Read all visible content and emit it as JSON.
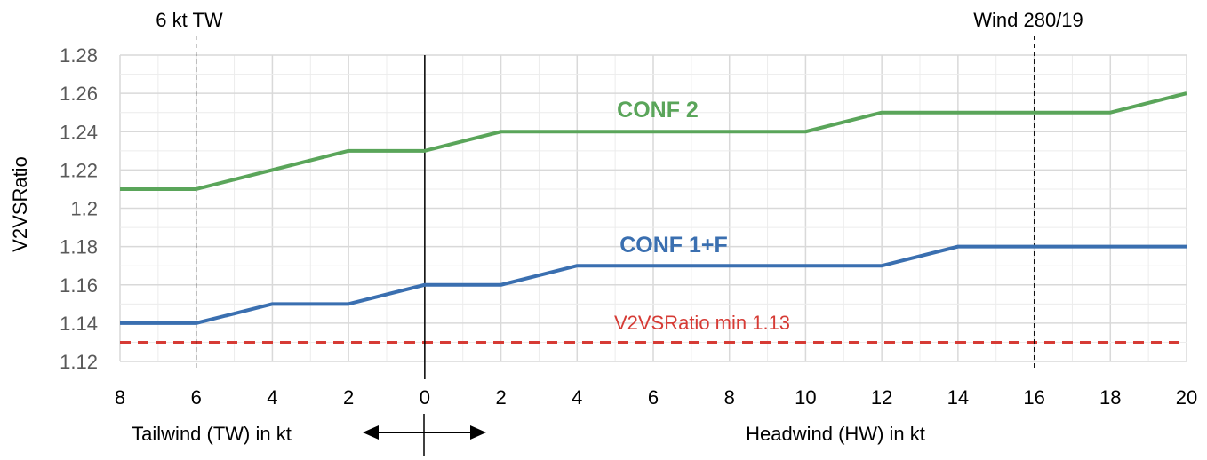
{
  "chart_data": {
    "type": "line",
    "title": "",
    "ylabel": "V2VSRatio",
    "xlabel_left": "Tailwind (TW) in kt",
    "xlabel_right": "Headwind (HW) in kt",
    "ylim": [
      1.12,
      1.28
    ],
    "yticks": [
      "1.12",
      "1.14",
      "1.16",
      "1.18",
      "1.2",
      "1.22",
      "1.24",
      "1.26",
      "1.28"
    ],
    "ytick_values": [
      1.12,
      1.14,
      1.16,
      1.18,
      1.2,
      1.22,
      1.24,
      1.26,
      1.28
    ],
    "x_wind_kt": [
      -8,
      -6,
      -4,
      -2,
      0,
      2,
      4,
      6,
      8,
      10,
      12,
      14,
      16,
      18,
      20
    ],
    "xticks": [
      "8",
      "6",
      "4",
      "2",
      "0",
      "2",
      "4",
      "6",
      "8",
      "10",
      "12",
      "14",
      "16",
      "18",
      "20"
    ],
    "xlim": [
      -8,
      20
    ],
    "grid": true,
    "series": [
      {
        "name": "CONF 2",
        "color": "#5aa55a",
        "values": [
          1.21,
          1.21,
          1.22,
          1.23,
          1.23,
          1.24,
          1.24,
          1.24,
          1.24,
          1.24,
          1.25,
          1.25,
          1.25,
          1.25,
          1.26
        ]
      },
      {
        "name": "CONF 1+F",
        "color": "#3a6fb0",
        "values": [
          1.14,
          1.14,
          1.15,
          1.15,
          1.16,
          1.16,
          1.17,
          1.17,
          1.17,
          1.17,
          1.17,
          1.18,
          1.18,
          1.18,
          1.18
        ]
      }
    ],
    "threshold": {
      "label": "V2VSRatio min 1.13",
      "value": 1.13,
      "color": "#d63b35"
    },
    "markers": [
      {
        "label": "6 kt TW",
        "x": -6
      },
      {
        "label": "Wind 280/19",
        "x": 16
      }
    ],
    "zero_line_x": 0
  }
}
